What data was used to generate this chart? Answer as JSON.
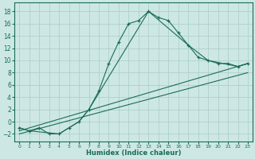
{
  "xlabel": "Humidex (Indice chaleur)",
  "ylabel": "",
  "background_color": "#cde8e4",
  "grid_color": "#afd0cb",
  "line_color": "#1a6b5a",
  "xlim": [
    -0.5,
    23.5
  ],
  "ylim": [
    -3.2,
    19.5
  ],
  "xticks": [
    0,
    1,
    2,
    3,
    4,
    5,
    6,
    7,
    8,
    9,
    10,
    11,
    12,
    13,
    14,
    15,
    16,
    17,
    18,
    19,
    20,
    21,
    22,
    23
  ],
  "yticks": [
    -2,
    0,
    2,
    4,
    6,
    8,
    10,
    12,
    14,
    16,
    18
  ],
  "curve": {
    "x": [
      0,
      1,
      2,
      3,
      4,
      5,
      6,
      7,
      8,
      9,
      10,
      11,
      12,
      13,
      14,
      15,
      16,
      17,
      18,
      19,
      20,
      21,
      22,
      23
    ],
    "y": [
      -1,
      -1.5,
      -1,
      -2,
      -2,
      -1,
      0,
      2,
      5,
      9.5,
      13,
      16,
      16.5,
      18,
      17,
      16.5,
      14.5,
      12.5,
      10.5,
      10,
      9.5,
      9.5,
      9,
      9.5
    ]
  },
  "polygon": {
    "x": [
      0,
      1,
      4,
      6,
      7,
      13,
      17,
      19,
      22,
      23
    ],
    "y": [
      -1,
      -1.5,
      -2,
      0,
      2,
      18,
      12.5,
      10,
      9,
      9.5
    ]
  },
  "line1": {
    "x": [
      0,
      23
    ],
    "y": [
      -1.5,
      9.5
    ]
  },
  "line2": {
    "x": [
      0,
      23
    ],
    "y": [
      -2,
      8.0
    ]
  }
}
